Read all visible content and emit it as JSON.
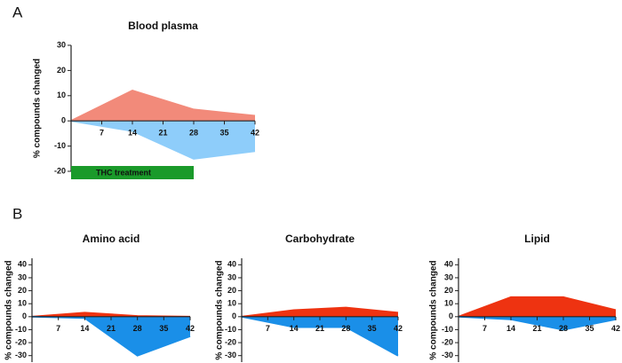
{
  "chart_data": [
    {
      "type": "area",
      "panel_label": "A",
      "title": "Blood plasma",
      "ylabel": "% compounds changed",
      "x": [
        0,
        14,
        28,
        42
      ],
      "xlim": [
        0,
        42
      ],
      "xticks": [
        7,
        14,
        21,
        28,
        35,
        42
      ],
      "ylim": [
        -20,
        30
      ],
      "yticks": [
        -20,
        -10,
        0,
        10,
        20,
        30
      ],
      "series": [
        {
          "color": "#f28a7a",
          "values": [
            0,
            12,
            4.5,
            2
          ]
        },
        {
          "color": "#8ecdfa",
          "values": [
            0,
            -4,
            -15,
            -12
          ]
        }
      ],
      "annotation": {
        "label": "THC treatment",
        "xrange": [
          0,
          28
        ],
        "color": "#1a9a2a"
      }
    },
    {
      "type": "area",
      "panel_label": "B",
      "title": "Amino acid",
      "ylabel": "% compounds changed",
      "x": [
        0,
        14,
        28,
        42
      ],
      "xlim": [
        0,
        42
      ],
      "xticks": [
        7,
        14,
        21,
        28,
        35,
        42
      ],
      "ylim": [
        -35,
        45
      ],
      "yticks": [
        -30,
        -20,
        -10,
        0,
        10,
        20,
        30,
        40
      ],
      "series": [
        {
          "color": "#ee3311",
          "values": [
            0,
            3,
            0.5,
            0
          ]
        },
        {
          "color": "#1a8fe8",
          "values": [
            0,
            -1,
            -30,
            -15
          ]
        }
      ]
    },
    {
      "type": "area",
      "title": "Carbohydrate",
      "ylabel": "% compounds changed",
      "x": [
        0,
        14,
        28,
        42
      ],
      "xlim": [
        0,
        42
      ],
      "xticks": [
        7,
        14,
        21,
        28,
        35,
        42
      ],
      "ylim": [
        -35,
        45
      ],
      "yticks": [
        -30,
        -20,
        -10,
        0,
        10,
        20,
        30,
        40
      ],
      "series": [
        {
          "color": "#ee3311",
          "values": [
            0,
            5,
            7,
            3
          ]
        },
        {
          "color": "#1a8fe8",
          "values": [
            0,
            -8,
            -8,
            -30
          ]
        }
      ]
    },
    {
      "type": "area",
      "title": "Lipid",
      "ylabel": "% compounds changed",
      "x": [
        0,
        14,
        28,
        42
      ],
      "xlim": [
        0,
        42
      ],
      "xticks": [
        7,
        14,
        21,
        28,
        35,
        42
      ],
      "ylim": [
        -35,
        45
      ],
      "yticks": [
        -30,
        -20,
        -10,
        0,
        10,
        20,
        30,
        40
      ],
      "series": [
        {
          "color": "#ee3311",
          "values": [
            0,
            15,
            15,
            5
          ]
        },
        {
          "color": "#1a8fe8",
          "values": [
            0,
            -2,
            -10,
            -2
          ]
        }
      ]
    }
  ]
}
